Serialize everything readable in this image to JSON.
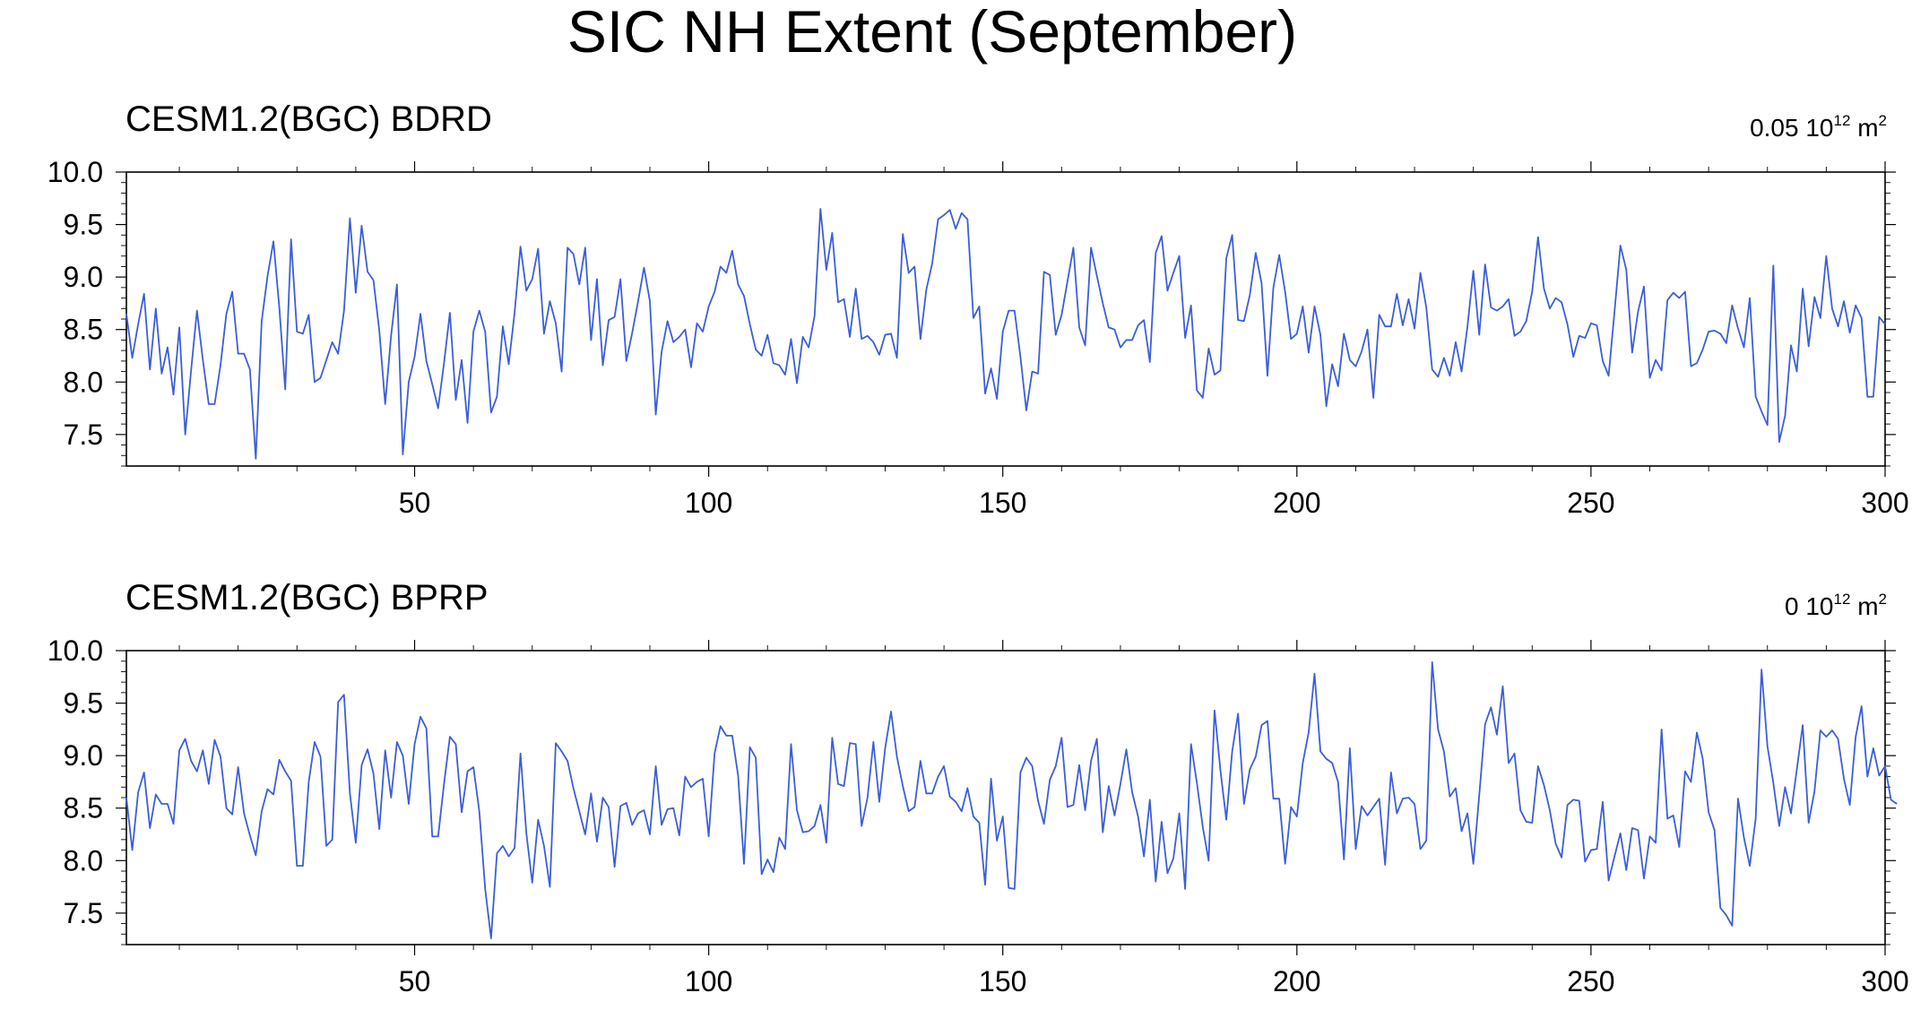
{
  "figure": {
    "title": "SIC NH Extent (September)"
  },
  "chart_data": [
    {
      "type": "line",
      "title": "CESM1.2(BGC) BDRD",
      "units": {
        "prefix": "0.05 10",
        "exp": "12",
        "unit": " m",
        "unit_exp": "2"
      },
      "xlim": [
        1,
        300
      ],
      "ylim": [
        7.2,
        10.0
      ],
      "xticks": [
        50,
        100,
        150,
        200,
        250,
        300
      ],
      "yticks": [
        7.5,
        8.0,
        8.5,
        9.0,
        9.5,
        10.0
      ],
      "ytick_labels": [
        "7.5",
        "8.0",
        "8.5",
        "9.0",
        "9.5",
        "10.0"
      ],
      "color": "#3b5ed9",
      "x_start": 1,
      "y": [
        8.65,
        8.23,
        8.55,
        8.84,
        8.12,
        8.7,
        8.08,
        8.33,
        7.88,
        8.52,
        7.5,
        8.11,
        8.68,
        8.21,
        7.79,
        7.79,
        8.16,
        8.65,
        8.86,
        8.27,
        8.27,
        8.12,
        7.27,
        8.58,
        9.01,
        9.34,
        8.71,
        7.93,
        9.36,
        8.48,
        8.46,
        8.64,
        8.0,
        8.04,
        8.21,
        8.38,
        8.27,
        8.68,
        9.56,
        8.85,
        9.49,
        9.05,
        8.97,
        8.49,
        7.79,
        8.44,
        8.93,
        7.31,
        8.0,
        8.24,
        8.65,
        8.2,
        7.98,
        7.75,
        8.18,
        8.66,
        7.83,
        8.21,
        7.61,
        8.48,
        8.68,
        8.48,
        7.71,
        7.86,
        8.53,
        8.17,
        8.66,
        9.29,
        8.87,
        8.98,
        9.27,
        8.46,
        8.77,
        8.56,
        8.1,
        9.28,
        9.22,
        8.93,
        9.28,
        8.4,
        8.98,
        8.16,
        8.59,
        8.62,
        8.98,
        8.2,
        8.47,
        8.77,
        9.09,
        8.77,
        7.69,
        8.29,
        8.58,
        8.38,
        8.43,
        8.5,
        8.14,
        8.56,
        8.48,
        8.72,
        8.86,
        9.1,
        9.04,
        9.25,
        8.93,
        8.82,
        8.55,
        8.31,
        8.25,
        8.45,
        8.18,
        8.16,
        8.07,
        8.41,
        7.99,
        8.43,
        8.33,
        8.63,
        9.65,
        9.07,
        9.42,
        8.76,
        8.79,
        8.43,
        8.89,
        8.41,
        8.44,
        8.38,
        8.26,
        8.45,
        8.46,
        8.23,
        9.41,
        9.04,
        9.1,
        8.41,
        8.88,
        9.13,
        9.55,
        9.59,
        9.64,
        9.46,
        9.61,
        9.55,
        8.61,
        8.72,
        7.89,
        8.13,
        7.84,
        8.48,
        8.68,
        8.68,
        8.24,
        7.73,
        8.1,
        8.08,
        9.05,
        9.02,
        8.45,
        8.64,
        8.96,
        9.28,
        8.52,
        8.35,
        9.28,
        9.01,
        8.75,
        8.52,
        8.5,
        8.33,
        8.4,
        8.4,
        8.54,
        8.59,
        8.19,
        9.23,
        9.39,
        8.87,
        9.04,
        9.2,
        8.42,
        8.73,
        7.92,
        7.85,
        8.32,
        8.07,
        8.11,
        9.18,
        9.4,
        8.59,
        8.58,
        8.83,
        9.23,
        8.94,
        8.06,
        8.9,
        9.21,
        8.86,
        8.41,
        8.46,
        8.72,
        8.28,
        8.72,
        8.45,
        7.77,
        8.17,
        7.96,
        8.46,
        8.21,
        8.15,
        8.29,
        8.5,
        7.85,
        8.64,
        8.53,
        8.53,
        8.84,
        8.54,
        8.79,
        8.51,
        9.04,
        8.71,
        8.12,
        8.05,
        8.23,
        8.06,
        8.38,
        8.1,
        8.53,
        9.06,
        8.45,
        9.12,
        8.71,
        8.68,
        8.72,
        8.79,
        8.44,
        8.48,
        8.58,
        8.86,
        9.38,
        8.89,
        8.7,
        8.8,
        8.76,
        8.55,
        8.24,
        8.44,
        8.42,
        8.56,
        8.54,
        8.2,
        8.06,
        8.67,
        9.3,
        9.07,
        8.28,
        8.67,
        8.91,
        8.04,
        8.21,
        8.11,
        8.78,
        8.85,
        8.8,
        8.86,
        8.15,
        8.18,
        8.31,
        8.48,
        8.49,
        8.46,
        8.37,
        8.73,
        8.51,
        8.33,
        8.8,
        7.86,
        7.72,
        7.59,
        9.11,
        7.43,
        7.68,
        8.35,
        8.1,
        8.89,
        8.34,
        8.81,
        8.61,
        9.2,
        8.7,
        8.53,
        8.77,
        8.47,
        8.73,
        8.61,
        7.86,
        7.86,
        8.62,
        8.55
      ]
    },
    {
      "type": "line",
      "title": "CESM1.2(BGC) BPRP",
      "units": {
        "prefix": "0 10",
        "exp": "12",
        "unit": " m",
        "unit_exp": "2"
      },
      "xlim": [
        1,
        300
      ],
      "ylim": [
        7.2,
        10.0
      ],
      "xticks": [
        50,
        100,
        150,
        200,
        250,
        300
      ],
      "yticks": [
        7.5,
        8.0,
        8.5,
        9.0,
        9.5,
        10.0
      ],
      "ytick_labels": [
        "7.5",
        "8.0",
        "8.5",
        "9.0",
        "9.5",
        "10.0"
      ],
      "color": "#3b5ed9",
      "x_start": 1,
      "y": [
        8.6,
        8.1,
        8.65,
        8.84,
        8.31,
        8.63,
        8.54,
        8.54,
        8.35,
        9.05,
        9.16,
        8.95,
        8.85,
        9.05,
        8.73,
        9.15,
        8.99,
        8.5,
        8.44,
        8.89,
        8.45,
        8.24,
        8.05,
        8.47,
        8.68,
        8.63,
        8.96,
        8.85,
        8.76,
        7.95,
        7.95,
        8.75,
        9.13,
        8.99,
        8.14,
        8.2,
        9.51,
        9.58,
        8.64,
        8.17,
        8.91,
        9.06,
        8.83,
        8.3,
        9.05,
        8.6,
        9.13,
        9.0,
        8.54,
        9.11,
        9.37,
        9.26,
        8.23,
        8.23,
        8.73,
        9.18,
        9.11,
        8.46,
        8.85,
        8.89,
        8.47,
        7.73,
        7.26,
        8.07,
        8.14,
        8.04,
        8.12,
        9.02,
        8.26,
        7.79,
        8.39,
        8.14,
        7.75,
        9.12,
        9.04,
        8.95,
        8.69,
        8.47,
        8.25,
        8.64,
        8.18,
        8.6,
        8.51,
        7.94,
        8.52,
        8.55,
        8.34,
        8.45,
        8.48,
        8.25,
        8.9,
        8.34,
        8.49,
        8.5,
        8.24,
        8.8,
        8.7,
        8.75,
        8.78,
        8.23,
        9.02,
        9.28,
        9.19,
        9.19,
        8.81,
        7.97,
        9.08,
        8.98,
        7.87,
        8.01,
        7.89,
        8.22,
        8.11,
        9.11,
        8.48,
        8.27,
        8.28,
        8.33,
        8.53,
        8.17,
        9.17,
        8.73,
        8.71,
        9.12,
        9.11,
        8.33,
        8.6,
        9.13,
        8.56,
        9.07,
        9.42,
        8.99,
        8.71,
        8.47,
        8.51,
        8.95,
        8.64,
        8.64,
        8.8,
        8.9,
        8.61,
        8.56,
        8.47,
        8.69,
        8.42,
        8.36,
        7.77,
        8.78,
        8.19,
        8.42,
        7.74,
        7.73,
        8.84,
        8.98,
        8.9,
        8.57,
        8.35,
        8.77,
        8.9,
        9.17,
        8.51,
        8.53,
        8.91,
        8.48,
        8.95,
        9.16,
        8.27,
        8.71,
        8.43,
        8.73,
        9.06,
        8.65,
        8.42,
        8.04,
        8.58,
        7.8,
        8.37,
        7.88,
        8.02,
        8.45,
        7.73,
        9.11,
        8.74,
        8.32,
        8.0,
        9.43,
        8.86,
        8.39,
        9.04,
        9.4,
        8.54,
        8.87,
        8.99,
        9.29,
        9.33,
        8.59,
        8.59,
        7.97,
        8.51,
        8.42,
        8.93,
        9.22,
        9.78,
        9.04,
        8.97,
        8.93,
        8.75,
        8.01,
        9.07,
        8.11,
        8.52,
        8.43,
        8.51,
        8.59,
        7.96,
        8.84,
        8.45,
        8.59,
        8.6,
        8.54,
        8.11,
        8.19,
        9.89,
        9.25,
        9.04,
        8.61,
        8.69,
        8.28,
        8.45,
        7.97,
        8.62,
        9.3,
        9.46,
        9.2,
        9.66,
        8.93,
        9.02,
        8.48,
        8.37,
        8.36,
        8.9,
        8.72,
        8.48,
        8.16,
        8.03,
        8.53,
        8.58,
        8.57,
        7.99,
        8.1,
        8.11,
        8.56,
        7.81,
        8.04,
        8.26,
        7.91,
        8.31,
        8.29,
        7.83,
        8.23,
        8.17,
        9.25,
        8.4,
        8.43,
        8.13,
        8.85,
        8.75,
        9.22,
        8.97,
        8.46,
        8.29,
        7.55,
        7.48,
        7.38,
        8.59,
        8.22,
        7.95,
        8.4,
        9.82,
        9.09,
        8.74,
        8.33,
        8.7,
        8.45,
        8.87,
        9.29,
        8.36,
        8.66,
        9.24,
        9.18,
        9.24,
        9.16,
        8.78,
        8.53,
        9.18,
        9.47,
        8.8,
        9.07,
        8.81,
        8.9,
        8.58,
        8.54
      ]
    }
  ]
}
